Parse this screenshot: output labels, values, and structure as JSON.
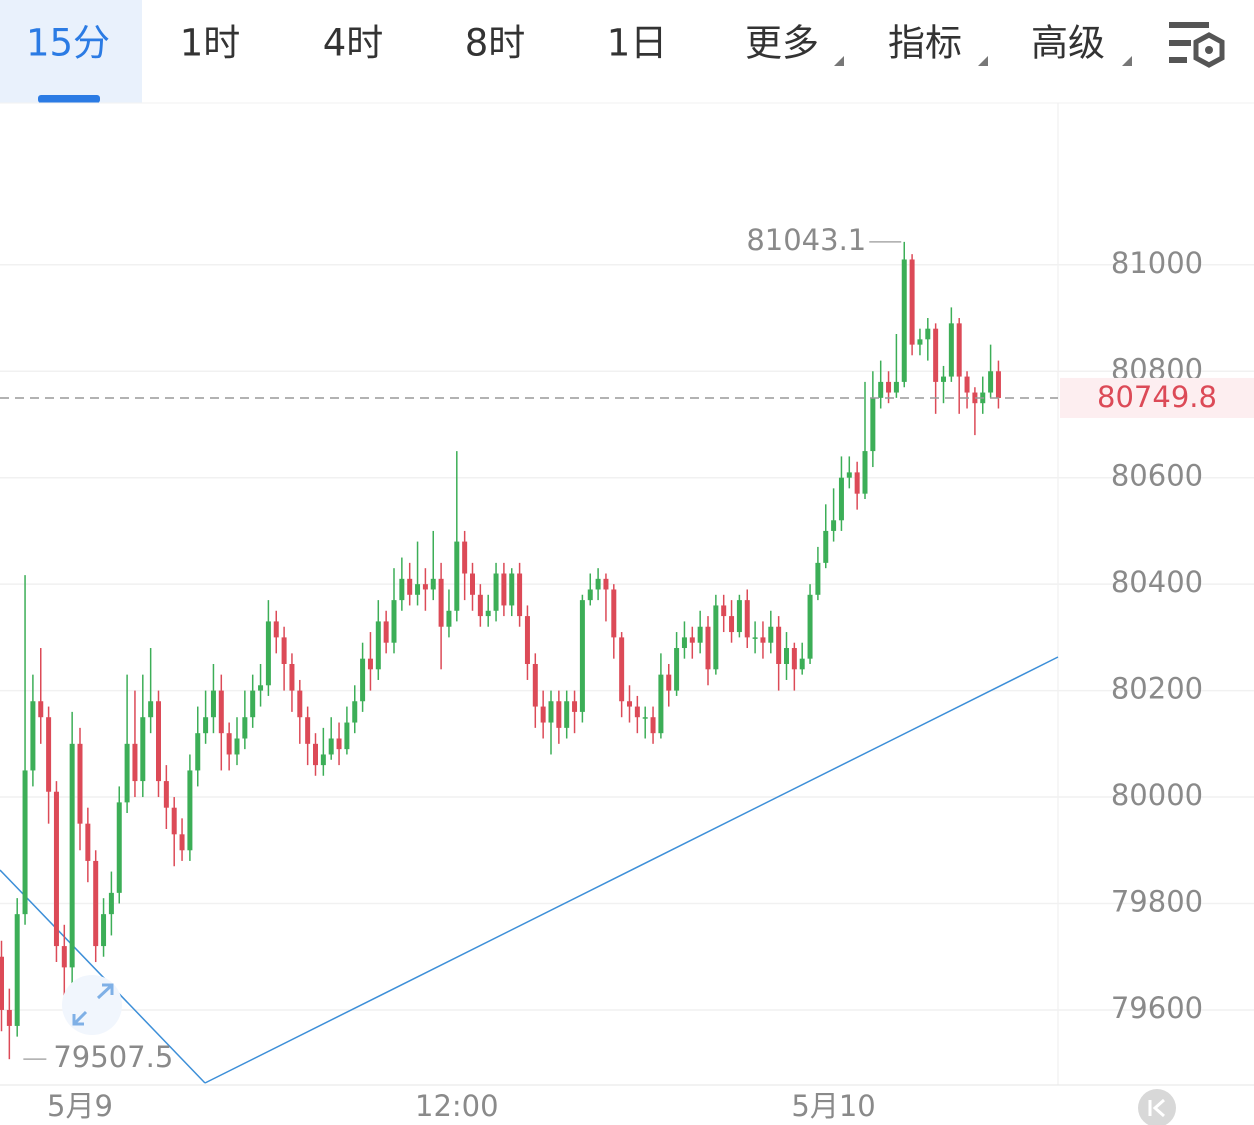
{
  "tabs": [
    "15分",
    "1时",
    "4时",
    "8时",
    "1日",
    "更多",
    "指标",
    "高级"
  ],
  "chart_data": {
    "type": "candlestick",
    "categories": [
      null,
      null,
      null,
      null,
      null,
      null,
      null,
      null,
      null,
      null,
      "5月9",
      null,
      null,
      null,
      null,
      null,
      null,
      null,
      null,
      null,
      null,
      null,
      null,
      null,
      null,
      null,
      null,
      null,
      null,
      null,
      null,
      null,
      null,
      null,
      null,
      null,
      null,
      null,
      null,
      null,
      null,
      null,
      null,
      null,
      null,
      null,
      null,
      null,
      null,
      null,
      null,
      null,
      null,
      null,
      null,
      null,
      null,
      null,
      "12:00",
      null,
      null,
      null,
      null,
      null,
      null,
      null,
      null,
      null,
      null,
      null,
      null,
      null,
      null,
      null,
      null,
      null,
      null,
      null,
      null,
      null,
      null,
      null,
      null,
      null,
      null,
      null,
      null,
      null,
      null,
      null,
      null,
      null,
      null,
      null,
      null,
      null,
      null,
      null,
      null,
      null,
      null,
      null,
      null,
      null,
      null,
      null,
      "5月10",
      null,
      null,
      null,
      null,
      null,
      null,
      null,
      null,
      null,
      null,
      null,
      null,
      null,
      null,
      null,
      null,
      null,
      null,
      null,
      null,
      null
    ],
    "open": [
      79700,
      79600,
      79570,
      79780,
      80050,
      80180,
      80150,
      80010,
      79720,
      79680,
      80100,
      79950,
      79880,
      79720,
      79780,
      79820,
      79990,
      80100,
      80030,
      80150,
      80180,
      80030,
      79980,
      79930,
      79900,
      80050,
      80120,
      80150,
      80200,
      80120,
      80080,
      80110,
      80150,
      80200,
      80210,
      80330,
      80300,
      80250,
      80200,
      80150,
      80100,
      80060,
      80080,
      80110,
      80090,
      80140,
      80180,
      80260,
      80240,
      80330,
      80290,
      80370,
      80410,
      80380,
      80400,
      80390,
      80410,
      80320,
      80350,
      80480,
      80420,
      80380,
      80340,
      80350,
      80420,
      80360,
      80420,
      80340,
      80250,
      80170,
      80140,
      80180,
      80130,
      80180,
      80160,
      80370,
      80390,
      80410,
      80390,
      80300,
      80180,
      80170,
      80150,
      80150,
      80120,
      80230,
      80200,
      80280,
      80300,
      80290,
      80320,
      80240,
      80360,
      80340,
      80310,
      80370,
      80300,
      80300,
      80290,
      80320,
      80250,
      80280,
      80240,
      80260,
      80380,
      80440,
      80500,
      80520,
      80600,
      80610,
      80570,
      80650,
      80750,
      80780,
      80760,
      80780,
      81010,
      80850,
      80860,
      80880,
      80780,
      80790,
      80890,
      80790,
      80760,
      80740,
      80760,
      80800
    ],
    "high": [
      79730,
      79640,
      79810,
      80417,
      80230,
      80280,
      80170,
      80030,
      79760,
      80160,
      80130,
      79980,
      79900,
      79810,
      79860,
      80020,
      80230,
      80200,
      80230,
      80280,
      80200,
      80060,
      80000,
      79960,
      80080,
      80170,
      80200,
      80250,
      80230,
      80140,
      80150,
      80200,
      80230,
      80250,
      80370,
      80350,
      80320,
      80270,
      80220,
      80170,
      80120,
      80130,
      80150,
      80140,
      80170,
      80210,
      80290,
      80310,
      80370,
      80350,
      80430,
      80450,
      80440,
      80480,
      80430,
      80500,
      80440,
      80390,
      80650,
      80500,
      80440,
      80400,
      80380,
      80440,
      80440,
      80430,
      80440,
      80360,
      80270,
      80200,
      80200,
      80200,
      80200,
      80200,
      80380,
      80420,
      80430,
      80420,
      80400,
      80310,
      80210,
      80190,
      80170,
      80170,
      80270,
      80250,
      80310,
      80330,
      80320,
      80350,
      80340,
      80380,
      80380,
      80370,
      80380,
      80390,
      80330,
      80330,
      80350,
      80340,
      80310,
      80290,
      80290,
      80400,
      80470,
      80550,
      80580,
      80640,
      80640,
      80630,
      80780,
      80800,
      80820,
      80800,
      80870,
      81043.1,
      81020,
      80880,
      80900,
      80890,
      80810,
      80920,
      80900,
      80800,
      80770,
      80790,
      80850,
      80820
    ],
    "low": [
      79560,
      79507.5,
      79550,
      79760,
      80020,
      80100,
      79950,
      79690,
      79620,
      79650,
      79900,
      79840,
      79690,
      79700,
      79740,
      79800,
      79970,
      80000,
      80000,
      80120,
      80000,
      79940,
      79870,
      79880,
      79880,
      80020,
      80100,
      80120,
      80050,
      80050,
      80060,
      80090,
      80130,
      80170,
      80190,
      80270,
      80200,
      80160,
      80100,
      80060,
      80040,
      80040,
      80070,
      80060,
      80080,
      80120,
      80160,
      80200,
      80220,
      80270,
      80270,
      80350,
      80360,
      80360,
      80350,
      80370,
      80240,
      80300,
      80330,
      80370,
      80350,
      80320,
      80320,
      80330,
      80340,
      80340,
      80320,
      80220,
      80130,
      80110,
      80080,
      80100,
      80110,
      80120,
      80140,
      80360,
      80370,
      80330,
      80260,
      80150,
      80140,
      80120,
      80110,
      80100,
      80110,
      80170,
      80190,
      80260,
      80260,
      80270,
      80210,
      80230,
      80310,
      80290,
      80300,
      80280,
      80270,
      80260,
      80270,
      80200,
      80220,
      80200,
      80230,
      80250,
      80370,
      80430,
      80480,
      80500,
      80580,
      80540,
      80560,
      80620,
      80730,
      80740,
      80750,
      80770,
      80830,
      80830,
      80820,
      80720,
      80740,
      80780,
      80720,
      80730,
      80680,
      80720,
      80750,
      80730
    ],
    "close": [
      79600,
      79570,
      79780,
      80050,
      80180,
      80150,
      80010,
      79720,
      79680,
      80100,
      79950,
      79880,
      79720,
      79780,
      79820,
      79990,
      80100,
      80030,
      80150,
      80180,
      80030,
      79980,
      79930,
      79900,
      80050,
      80120,
      80150,
      80200,
      80120,
      80080,
      80110,
      80150,
      80200,
      80210,
      80330,
      80300,
      80250,
      80200,
      80150,
      80100,
      80060,
      80080,
      80110,
      80090,
      80140,
      80180,
      80260,
      80240,
      80330,
      80290,
      80370,
      80410,
      80380,
      80400,
      80390,
      80410,
      80320,
      80350,
      80480,
      80420,
      80380,
      80340,
      80350,
      80420,
      80360,
      80420,
      80340,
      80250,
      80170,
      80140,
      80180,
      80130,
      80180,
      80160,
      80370,
      80390,
      80410,
      80390,
      80300,
      80180,
      80170,
      80150,
      80150,
      80120,
      80230,
      80200,
      80280,
      80300,
      80290,
      80320,
      80240,
      80360,
      80340,
      80310,
      80370,
      80300,
      80300,
      80290,
      80320,
      80250,
      80280,
      80240,
      80260,
      80380,
      80440,
      80500,
      80520,
      80600,
      80610,
      80570,
      80650,
      80750,
      80780,
      80760,
      80780,
      81010,
      80850,
      80860,
      80880,
      80780,
      80790,
      80890,
      80790,
      80760,
      80740,
      80760,
      80800,
      80749.8
    ],
    "up_color": "#3cae57",
    "down_color": "#dc4a57",
    "ylim": [
      79459,
      81304
    ],
    "yticks": [
      79600,
      79800,
      80000,
      80200,
      80400,
      80600,
      80800,
      81000
    ],
    "grid": true
  }
}
